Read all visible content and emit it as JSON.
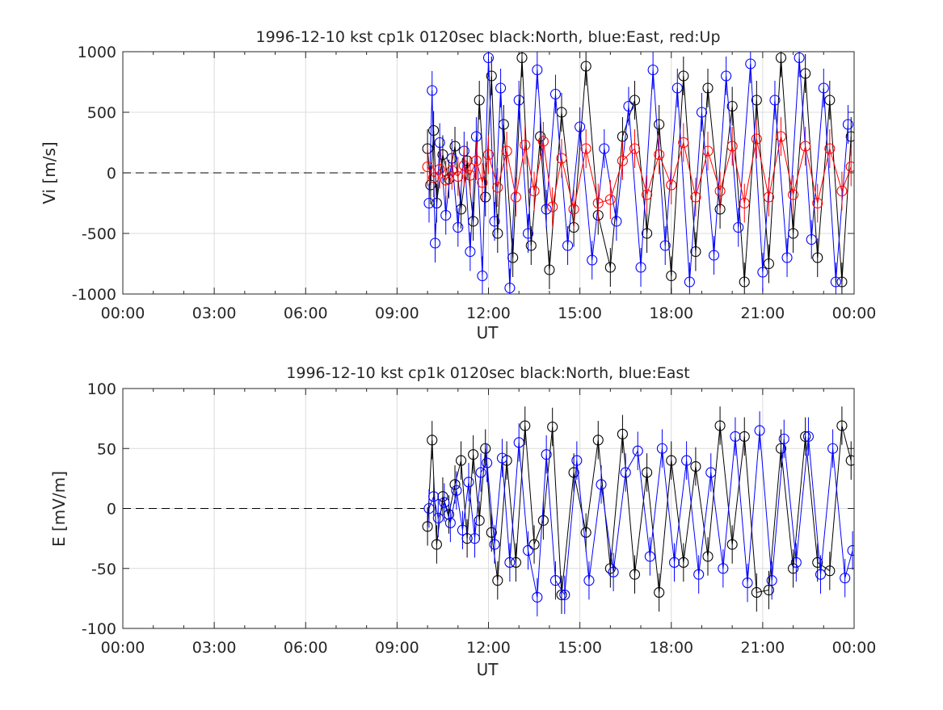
{
  "chart_data": [
    {
      "type": "scatter",
      "title": "1996-12-10 kst cp1k 0120sec black:North, blue:East, red:Up",
      "xlabel": "UT",
      "ylabel": "Vi [m/s]",
      "xlim": [
        0,
        24
      ],
      "ylim": [
        -1000,
        1000
      ],
      "xtick_labels": [
        "00:00",
        "03:00",
        "06:00",
        "09:00",
        "12:00",
        "15:00",
        "18:00",
        "21:00",
        "00:00"
      ],
      "ytick_labels": [
        "-1000",
        "-500",
        "0",
        "500",
        "1000"
      ],
      "ytick_values": [
        -1000,
        -500,
        0,
        500,
        1000
      ],
      "grid": true,
      "reference_line": {
        "y": 0,
        "x_start": 0,
        "x_end": 9.9,
        "style": "dashed"
      },
      "series": [
        {
          "name": "North",
          "color": "#000000",
          "x": [
            10.0,
            10.1,
            10.2,
            10.3,
            10.5,
            10.7,
            10.9,
            11.1,
            11.3,
            11.5,
            11.7,
            11.9,
            12.1,
            12.3,
            12.5,
            12.8,
            13.1,
            13.4,
            13.7,
            14.0,
            14.4,
            14.8,
            15.2,
            15.6,
            16.0,
            16.4,
            16.8,
            17.2,
            17.6,
            18.0,
            18.4,
            18.8,
            19.2,
            19.6,
            20.0,
            20.4,
            20.8,
            21.2,
            21.6,
            22.0,
            22.4,
            22.8,
            23.2,
            23.6,
            23.9
          ],
          "y": [
            200,
            -100,
            350,
            -250,
            150,
            -50,
            220,
            -300,
            100,
            -400,
            600,
            -200,
            800,
            -500,
            400,
            -700,
            950,
            -600,
            300,
            -800,
            500,
            -450,
            880,
            -350,
            -780,
            300,
            600,
            -500,
            400,
            -850,
            800,
            -650,
            700,
            -300,
            550,
            -900,
            600,
            -750,
            950,
            -500,
            820,
            -700,
            600,
            -900,
            300
          ]
        },
        {
          "name": "East",
          "color": "#0000ff",
          "x": [
            10.05,
            10.15,
            10.25,
            10.4,
            10.6,
            10.8,
            11.0,
            11.2,
            11.4,
            11.6,
            11.8,
            12.0,
            12.2,
            12.4,
            12.7,
            13.0,
            13.3,
            13.6,
            13.9,
            14.2,
            14.6,
            15.0,
            15.4,
            15.8,
            16.2,
            16.6,
            17.0,
            17.4,
            17.8,
            18.2,
            18.6,
            19.0,
            19.4,
            19.8,
            20.2,
            20.6,
            21.0,
            21.4,
            21.8,
            22.2,
            22.6,
            23.0,
            23.4,
            23.8
          ],
          "y": [
            -250,
            680,
            -580,
            250,
            -350,
            120,
            -450,
            180,
            -650,
            300,
            -850,
            950,
            -400,
            700,
            -950,
            600,
            -500,
            850,
            -300,
            650,
            -600,
            380,
            -720,
            200,
            -400,
            550,
            -780,
            850,
            -600,
            700,
            -900,
            500,
            -680,
            800,
            -450,
            900,
            -820,
            600,
            -700,
            950,
            -550,
            700,
            -900,
            400
          ]
        },
        {
          "name": "Up",
          "color": "#ff0000",
          "x": [
            10.0,
            10.2,
            10.4,
            10.6,
            10.8,
            11.0,
            11.2,
            11.4,
            11.6,
            11.8,
            12.0,
            12.3,
            12.6,
            12.9,
            13.2,
            13.5,
            13.8,
            14.1,
            14.4,
            14.8,
            15.2,
            15.6,
            16.0,
            16.4,
            16.8,
            17.2,
            17.6,
            18.0,
            18.4,
            18.8,
            19.2,
            19.6,
            20.0,
            20.4,
            20.8,
            21.2,
            21.6,
            22.0,
            22.4,
            22.8,
            23.2,
            23.6,
            23.9
          ],
          "y": [
            50,
            -40,
            30,
            -60,
            20,
            -30,
            60,
            -20,
            100,
            -80,
            150,
            -120,
            180,
            -200,
            230,
            -150,
            260,
            -280,
            120,
            -300,
            200,
            -250,
            -220,
            100,
            200,
            -180,
            150,
            -100,
            250,
            -200,
            180,
            -150,
            220,
            -250,
            280,
            -200,
            300,
            -180,
            220,
            -250,
            200,
            -150,
            50
          ]
        }
      ]
    },
    {
      "type": "scatter",
      "title": "1996-12-10 kst cp1k 0120sec black:North, blue:East",
      "xlabel": "UT",
      "ylabel": "E [mV/m]",
      "xlim": [
        0,
        24
      ],
      "ylim": [
        -100,
        100
      ],
      "xtick_labels": [
        "00:00",
        "03:00",
        "06:00",
        "09:00",
        "12:00",
        "15:00",
        "18:00",
        "21:00",
        "00:00"
      ],
      "ytick_labels": [
        "-100",
        "-50",
        "0",
        "50",
        "100"
      ],
      "ytick_values": [
        -100,
        -50,
        0,
        50,
        100
      ],
      "grid": true,
      "reference_line": {
        "y": 0,
        "x_start": 0,
        "x_end": 9.9,
        "style": "dashed"
      },
      "series": [
        {
          "name": "North",
          "color": "#000000",
          "x": [
            10.0,
            10.15,
            10.3,
            10.5,
            10.7,
            10.9,
            11.1,
            11.3,
            11.5,
            11.7,
            11.9,
            12.1,
            12.3,
            12.6,
            12.9,
            13.2,
            13.5,
            13.8,
            14.1,
            14.4,
            14.8,
            15.2,
            15.6,
            16.0,
            16.4,
            16.8,
            17.2,
            17.6,
            18.0,
            18.4,
            18.8,
            19.2,
            19.6,
            20.0,
            20.4,
            20.8,
            21.2,
            21.6,
            22.0,
            22.4,
            22.8,
            23.2,
            23.6,
            23.9
          ],
          "y": [
            -15,
            57,
            -30,
            10,
            -5,
            20,
            40,
            -25,
            45,
            -10,
            50,
            -20,
            -60,
            40,
            -45,
            69,
            -30,
            -10,
            68,
            -72,
            30,
            -20,
            57,
            -50,
            62,
            -55,
            30,
            -70,
            40,
            -45,
            35,
            -40,
            69,
            -30,
            60,
            -70,
            -68,
            50,
            -50,
            60,
            -45,
            -52,
            69,
            40
          ]
        },
        {
          "name": "East",
          "color": "#0000ff",
          "x": [
            10.05,
            10.2,
            10.35,
            10.55,
            10.75,
            10.95,
            11.15,
            11.35,
            11.55,
            11.75,
            11.95,
            12.2,
            12.45,
            12.7,
            13.0,
            13.3,
            13.6,
            13.9,
            14.2,
            14.5,
            14.9,
            15.3,
            15.7,
            16.1,
            16.5,
            16.9,
            17.3,
            17.7,
            18.1,
            18.5,
            18.9,
            19.3,
            19.7,
            20.1,
            20.5,
            20.9,
            21.3,
            21.7,
            22.1,
            22.5,
            22.9,
            23.3,
            23.7,
            23.95
          ],
          "y": [
            0,
            10,
            -8,
            5,
            -12,
            15,
            -18,
            22,
            -25,
            30,
            38,
            -30,
            42,
            -45,
            55,
            -35,
            -74,
            45,
            -60,
            -72,
            40,
            -60,
            20,
            -53,
            30,
            48,
            -40,
            50,
            -45,
            40,
            -55,
            30,
            -50,
            60,
            -62,
            65,
            -60,
            58,
            -45,
            60,
            -55,
            50,
            -58,
            -35
          ]
        }
      ]
    }
  ]
}
